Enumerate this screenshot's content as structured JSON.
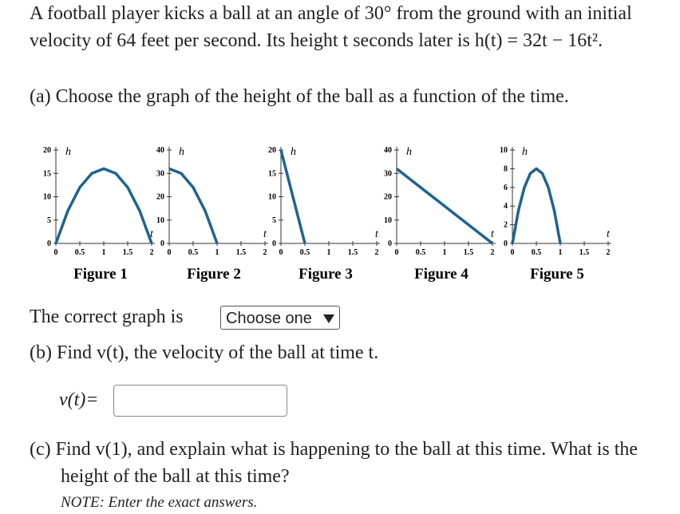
{
  "problem": {
    "intro": "A football player kicks a ball at an angle of 30° from the ground with an initial velocity of 64 feet per second. Its height t seconds later is h(t) = 32t − 16t².",
    "part_a": "(a) Choose the graph of the height of the ball as a function of the time.",
    "correct_label": "The correct graph is",
    "select_placeholder": "Choose one",
    "part_b": "(b) Find v(t), the velocity of the ball at time t.",
    "v_label": "v(t)=",
    "part_c": "(c) Find v(1), and explain what is happening to the ball at this time. What is the height of the ball at this time?",
    "note": "NOTE: Enter the exact answers."
  },
  "figures": [
    {
      "type": "line",
      "caption": "Figure 1",
      "xlabel": "t",
      "ylabel": "h",
      "color": "#1f6391",
      "x": [
        0,
        0.25,
        0.5,
        0.75,
        1,
        1.25,
        1.5,
        1.75,
        2
      ],
      "values": [
        0,
        7,
        12,
        15,
        16,
        15,
        12,
        7,
        0
      ],
      "xlim": [
        0,
        2
      ],
      "ylim": [
        0,
        20
      ],
      "xticks": [
        0,
        0.5,
        1,
        1.5,
        2
      ],
      "yticks": [
        0,
        5,
        10,
        15,
        20
      ]
    },
    {
      "type": "line",
      "caption": "Figure 2",
      "xlabel": "t",
      "ylabel": "h",
      "color": "#1f6391",
      "x": [
        0,
        0.25,
        0.5,
        0.75,
        1
      ],
      "values": [
        32,
        30,
        24,
        14,
        0
      ],
      "xlim": [
        0,
        2
      ],
      "ylim": [
        0,
        40
      ],
      "xticks": [
        0,
        0.5,
        1,
        1.5,
        2
      ],
      "yticks": [
        0,
        10,
        20,
        30,
        40
      ]
    },
    {
      "type": "line",
      "caption": "Figure 3",
      "xlabel": "t",
      "ylabel": "h",
      "color": "#1f6391",
      "x": [
        0,
        0.5
      ],
      "values": [
        20,
        0
      ],
      "xlim": [
        0,
        2
      ],
      "ylim": [
        0,
        20
      ],
      "xticks": [
        0,
        0.5,
        1,
        1.5,
        2
      ],
      "yticks": [
        0,
        5,
        10,
        15,
        20
      ]
    },
    {
      "type": "line",
      "caption": "Figure 4",
      "xlabel": "t",
      "ylabel": "h",
      "color": "#1f6391",
      "x": [
        0,
        2
      ],
      "values": [
        32,
        0
      ],
      "xlim": [
        0,
        2
      ],
      "ylim": [
        0,
        40
      ],
      "xticks": [
        0,
        0.5,
        1,
        1.5,
        2
      ],
      "yticks": [
        0,
        10,
        20,
        30,
        40
      ]
    },
    {
      "type": "line",
      "caption": "Figure 5",
      "xlabel": "t",
      "ylabel": "h",
      "color": "#1f6391",
      "x": [
        0,
        0.125,
        0.25,
        0.375,
        0.5,
        0.625,
        0.75,
        0.875,
        1
      ],
      "values": [
        0,
        3.5,
        6,
        7.5,
        8,
        7.5,
        6,
        3.5,
        0
      ],
      "xlim": [
        0,
        2
      ],
      "ylim": [
        0,
        10
      ],
      "xticks": [
        0,
        0.5,
        1,
        1.5,
        2
      ],
      "yticks": [
        0,
        2,
        4,
        6,
        8,
        10
      ]
    }
  ]
}
